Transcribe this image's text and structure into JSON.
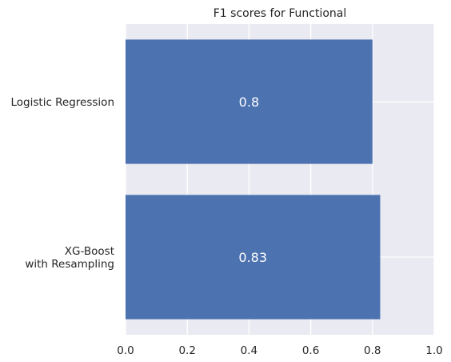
{
  "chart_data": {
    "type": "bar",
    "orientation": "horizontal",
    "title": "F1 scores for Functional",
    "xlabel": "",
    "ylabel": "",
    "xlim": [
      0,
      1
    ],
    "xticks": [
      "0.0",
      "0.2",
      "0.4",
      "0.6",
      "0.8",
      "1.0"
    ],
    "grid": true,
    "legend": "none",
    "categories": [
      [
        "Logistic Regression"
      ],
      [
        "XG-Boost",
        "with Resampling"
      ]
    ],
    "values": [
      0.8,
      0.825
    ],
    "data_labels": [
      "0.8",
      "0.83"
    ],
    "colors": {
      "bar": "#4c72b0",
      "plot_background": "#eaeaf2",
      "grid": "#ffffff"
    }
  }
}
